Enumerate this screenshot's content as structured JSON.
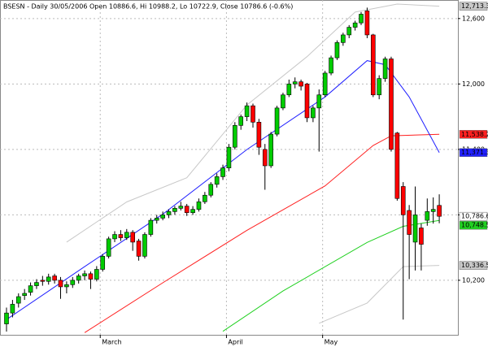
{
  "chart_data": {
    "type": "candlestick",
    "title": "BSESN - Daily 30/05/2006 Open 10886.6, Hi 10988.2, Lo 10722.9, Close 10786.6 (-0.6%)",
    "categories": [
      null,
      null,
      null,
      null,
      null,
      null,
      null,
      null,
      null,
      null,
      null,
      null,
      null,
      null,
      null,
      null,
      "March",
      null,
      null,
      null,
      null,
      null,
      null,
      null,
      null,
      null,
      null,
      null,
      null,
      null,
      null,
      null,
      null,
      null,
      null,
      null,
      null,
      "April",
      null,
      null,
      null,
      null,
      null,
      null,
      null,
      null,
      null,
      null,
      null,
      null,
      null,
      null,
      null,
      "May",
      null,
      null,
      null,
      null,
      null,
      null,
      null,
      null,
      null,
      null,
      null,
      null,
      null,
      null,
      null,
      null,
      null,
      null,
      null
    ],
    "open": [
      9800,
      9900,
      9990,
      10060,
      10090,
      10150,
      10200,
      10190,
      10240,
      10200,
      10140,
      10160,
      10200,
      10240,
      10260,
      10210,
      10300,
      10420,
      10580,
      10620,
      10590,
      10640,
      10560,
      10420,
      10620,
      10750,
      10770,
      10800,
      10830,
      10860,
      10880,
      10820,
      10850,
      10920,
      10980,
      11080,
      11150,
      11230,
      11420,
      11620,
      11700,
      11800,
      11650,
      11400,
      11250,
      11540,
      11780,
      11900,
      12000,
      12020,
      12000,
      11690,
      11780,
      11900,
      12100,
      12240,
      12380,
      12450,
      12520,
      12560,
      12670,
      12450,
      11900,
      12050,
      12230,
      11550,
      11060,
      10840,
      10550,
      10680,
      10750,
      10830,
      10886.6
    ],
    "high": [
      9950,
      10020,
      10080,
      10120,
      10180,
      10210,
      10240,
      10260,
      10260,
      10230,
      10190,
      10230,
      10260,
      10290,
      10280,
      10330,
      10440,
      10600,
      10650,
      10660,
      10670,
      10660,
      10580,
      10640,
      10770,
      10800,
      10830,
      10850,
      10880,
      10920,
      10900,
      10880,
      10950,
      11010,
      11100,
      11180,
      11260,
      11450,
      11650,
      11720,
      11830,
      11820,
      11680,
      11450,
      11560,
      11800,
      11920,
      12040,
      12060,
      12040,
      12010,
      11800,
      11950,
      12120,
      12260,
      12400,
      12470,
      12540,
      12580,
      12660,
      12700,
      12460,
      12080,
      12250,
      12250,
      11560,
      11100,
      10890,
      11060,
      10720,
      10950,
      10960,
      10988.2
    ],
    "low": [
      9730,
      9860,
      9950,
      10020,
      10060,
      10120,
      10150,
      10160,
      10170,
      10030,
      10080,
      10130,
      10170,
      10200,
      10120,
      10190,
      10280,
      10400,
      10550,
      10560,
      10570,
      10470,
      10380,
      10400,
      10600,
      10720,
      10750,
      10770,
      10800,
      10840,
      10790,
      10800,
      10830,
      10900,
      10960,
      11050,
      11120,
      11200,
      11400,
      11580,
      11660,
      11600,
      11350,
      11030,
      11230,
      11520,
      11760,
      11880,
      11960,
      11940,
      11650,
      11650,
      11380,
      11880,
      12080,
      12220,
      12350,
      12420,
      12490,
      12540,
      12420,
      11880,
      11860,
      12020,
      11380,
      10930,
      9840,
      10210,
      10290,
      10290,
      10700,
      10720,
      10722.9
    ],
    "close": [
      9900,
      9980,
      10050,
      10080,
      10150,
      10180,
      10190,
      10230,
      10200,
      10140,
      10160,
      10200,
      10240,
      10260,
      10210,
      10300,
      10420,
      10580,
      10620,
      10590,
      10640,
      10550,
      10420,
      10620,
      10750,
      10770,
      10800,
      10830,
      10860,
      10880,
      10820,
      10850,
      10920,
      10980,
      11080,
      11150,
      11230,
      11420,
      11620,
      11700,
      11800,
      11650,
      11420,
      11250,
      11540,
      11780,
      11900,
      12000,
      12020,
      11980,
      11690,
      11780,
      11900,
      12100,
      12240,
      12380,
      12450,
      12520,
      12560,
      12640,
      12450,
      11900,
      12050,
      12230,
      11400,
      10950,
      10800,
      10620,
      10800,
      10530,
      10830,
      10850,
      10786.6
    ],
    "close_label": "10,786.6",
    "up_color": "#00cc00",
    "down_color": "#ff0000",
    "ylim": [
      9700,
      12770
    ],
    "yticks": [
      {
        "value": 10200,
        "label": "10,200"
      },
      {
        "value": 10800,
        "label": "10,800"
      },
      {
        "value": 11400,
        "label": "11,400"
      },
      {
        "value": 12000,
        "label": "12,000"
      },
      {
        "value": 12600,
        "label": "12,600"
      }
    ],
    "grid": true,
    "lines": [
      {
        "color": "#c8c8c8",
        "x": [
          10,
          20,
          30,
          40,
          50,
          58,
          65,
          72
        ],
        "values": [
          10550,
          10918,
          11140,
          11807,
          12251,
          12659,
          12733,
          12713.3
        ],
        "last_label": "12,713.3"
      },
      {
        "color": "#ff2020",
        "x": [
          13,
          26,
          40,
          53,
          61,
          64,
          72
        ],
        "values": [
          9720,
          10177,
          10658,
          11066,
          11436,
          11525,
          11538.2
        ],
        "last_label": "11,538.2"
      },
      {
        "color": "#2020ff",
        "x": [
          0,
          13,
          26,
          40,
          53,
          60,
          63,
          67,
          72
        ],
        "values": [
          9840,
          10325,
          10806,
          11399,
          11881,
          12214,
          12177,
          11881,
          11371.3
        ],
        "last_label": "11,371.3"
      },
      {
        "color": "#20d020",
        "x": [
          36,
          46,
          60,
          66,
          72
        ],
        "values": [
          9732,
          10102,
          10547,
          10695,
          10748.5
        ],
        "last_label": "10,748.5"
      },
      {
        "color": "#c8c8c8",
        "x": [
          52,
          60,
          66,
          72
        ],
        "values": [
          9806,
          9991,
          10325,
          10336.5
        ],
        "last_label": "10,336.5"
      }
    ]
  }
}
